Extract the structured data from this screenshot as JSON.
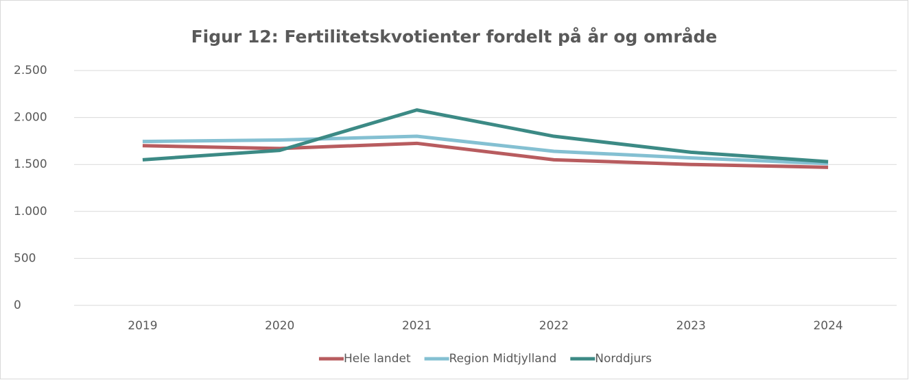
{
  "chart_data": {
    "type": "line",
    "title": "Figur 12: Fertilitetskvotienter fordelt på år og område",
    "categories": [
      "2019",
      "2020",
      "2021",
      "2022",
      "2023",
      "2024"
    ],
    "series": [
      {
        "name": "Hele landet",
        "color": "#b85c5f",
        "values": [
          1700,
          1670,
          1725,
          1550,
          1500,
          1470
        ]
      },
      {
        "name": "Region Midtjylland",
        "color": "#84c0d2",
        "values": [
          1745,
          1760,
          1800,
          1640,
          1570,
          1510
        ]
      },
      {
        "name": "Norddjurs",
        "color": "#3c8a85",
        "values": [
          1550,
          1650,
          2080,
          1800,
          1630,
          1530
        ]
      }
    ],
    "ylim": [
      0,
      2500
    ],
    "yticks": [
      0,
      500,
      {
        "value": 1000,
        "label": "1.000"
      },
      {
        "value": 1500,
        "label": "1.500"
      },
      {
        "value": 2000,
        "label": "2.000"
      },
      {
        "value": 2500,
        "label": "2.500"
      }
    ],
    "grid": true,
    "legend": "bottom"
  }
}
